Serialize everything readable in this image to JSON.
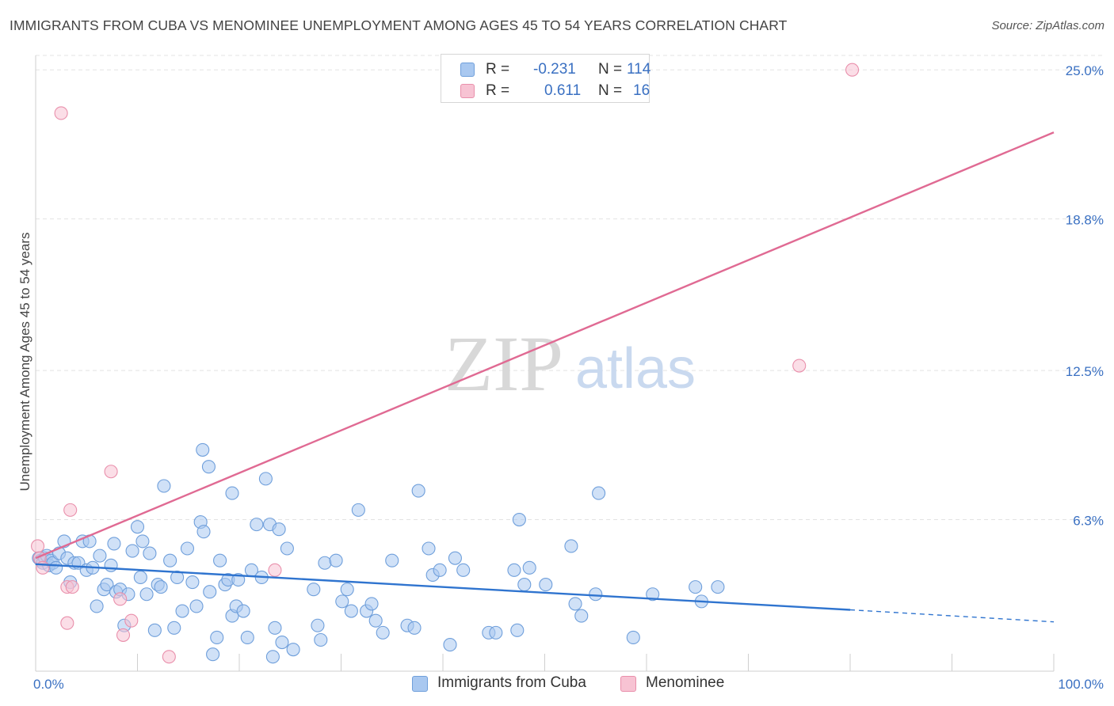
{
  "title": "IMMIGRANTS FROM CUBA VS MENOMINEE UNEMPLOYMENT AMONG AGES 45 TO 54 YEARS CORRELATION CHART",
  "source": "Source: ZipAtlas.com",
  "watermark": {
    "zip": "ZIP",
    "atlas": "atlas"
  },
  "legend": {
    "r_label": "R =",
    "n_label": "N =",
    "series": [
      {
        "name": "Immigrants from Cuba",
        "r": "-0.231",
        "n": "114"
      },
      {
        "name": "Menominee",
        "r": "0.611",
        "n": "16"
      }
    ]
  },
  "colors": {
    "cuba_fill": "#a9c8f0",
    "cuba_stroke": "#6f9fdb",
    "cuba_line": "#2f74cf",
    "menominee_fill": "#f7c3d3",
    "menominee_stroke": "#e98fab",
    "menominee_line": "#e06a93",
    "axis_label": "#3a70c2",
    "grid": "#e3e3e3"
  },
  "chart_data": {
    "type": "scatter",
    "title": "IMMIGRANTS FROM CUBA VS MENOMINEE UNEMPLOYMENT AMONG AGES 45 TO 54 YEARS CORRELATION CHART",
    "xlabel": "",
    "ylabel": "Unemployment Among Ages 45 to 54 years",
    "x_tick_labels": [
      "0.0%",
      "100.0%"
    ],
    "y_tick_labels": [
      "25.0%",
      "18.8%",
      "12.5%",
      "6.3%"
    ],
    "y_ticks": [
      25.0,
      18.8,
      12.5,
      6.3
    ],
    "xlim": [
      0,
      100
    ],
    "ylim": [
      0,
      25.6
    ],
    "series": [
      {
        "name": "Immigrants from Cuba",
        "points": [
          [
            0.3,
            4.7
          ],
          [
            0.5,
            4.6
          ],
          [
            0.7,
            4.5
          ],
          [
            0.9,
            4.7
          ],
          [
            1.1,
            4.8
          ],
          [
            1.3,
            4.4
          ],
          [
            1.5,
            4.6
          ],
          [
            1.7,
            4.5
          ],
          [
            2.0,
            4.3
          ],
          [
            2.3,
            4.9
          ],
          [
            2.8,
            5.4
          ],
          [
            3.1,
            4.7
          ],
          [
            3.4,
            3.7
          ],
          [
            3.8,
            4.5
          ],
          [
            4.2,
            4.5
          ],
          [
            4.6,
            5.4
          ],
          [
            5.0,
            4.2
          ],
          [
            5.3,
            5.4
          ],
          [
            5.6,
            4.3
          ],
          [
            6.0,
            2.7
          ],
          [
            6.3,
            4.8
          ],
          [
            6.7,
            3.4
          ],
          [
            7.0,
            3.6
          ],
          [
            7.4,
            4.4
          ],
          [
            7.7,
            5.3
          ],
          [
            7.9,
            3.3
          ],
          [
            8.3,
            3.4
          ],
          [
            8.7,
            1.9
          ],
          [
            9.1,
            3.2
          ],
          [
            9.5,
            5.0
          ],
          [
            10.0,
            6.0
          ],
          [
            10.3,
            3.9
          ],
          [
            10.5,
            5.4
          ],
          [
            10.9,
            3.2
          ],
          [
            11.2,
            4.9
          ],
          [
            11.7,
            1.7
          ],
          [
            12.0,
            3.6
          ],
          [
            12.3,
            3.5
          ],
          [
            12.6,
            7.7
          ],
          [
            13.2,
            4.6
          ],
          [
            13.6,
            1.8
          ],
          [
            13.9,
            3.9
          ],
          [
            14.4,
            2.5
          ],
          [
            14.9,
            5.1
          ],
          [
            15.4,
            3.7
          ],
          [
            15.8,
            2.7
          ],
          [
            16.2,
            6.2
          ],
          [
            16.5,
            5.8
          ],
          [
            17.1,
            3.3
          ],
          [
            17.4,
            0.7
          ],
          [
            17.8,
            1.4
          ],
          [
            18.1,
            4.6
          ],
          [
            18.6,
            3.6
          ],
          [
            18.9,
            3.8
          ],
          [
            19.3,
            2.3
          ],
          [
            19.7,
            2.7
          ],
          [
            19.9,
            3.8
          ],
          [
            20.4,
            2.5
          ],
          [
            20.8,
            1.4
          ],
          [
            21.2,
            4.2
          ],
          [
            21.7,
            6.1
          ],
          [
            22.2,
            3.9
          ],
          [
            22.6,
            8.0
          ],
          [
            23.0,
            6.1
          ],
          [
            23.3,
            0.6
          ],
          [
            23.5,
            1.8
          ],
          [
            23.9,
            5.9
          ],
          [
            24.2,
            1.2
          ],
          [
            24.7,
            5.1
          ],
          [
            25.3,
            0.9
          ],
          [
            16.4,
            9.2
          ],
          [
            17.0,
            8.5
          ],
          [
            19.3,
            7.4
          ],
          [
            27.3,
            3.4
          ],
          [
            27.7,
            1.9
          ],
          [
            28.0,
            1.3
          ],
          [
            28.4,
            4.5
          ],
          [
            29.5,
            4.6
          ],
          [
            30.1,
            2.9
          ],
          [
            30.6,
            3.4
          ],
          [
            31.0,
            2.5
          ],
          [
            32.5,
            2.5
          ],
          [
            33.0,
            2.8
          ],
          [
            33.4,
            2.1
          ],
          [
            34.1,
            1.6
          ],
          [
            31.7,
            6.7
          ],
          [
            35.0,
            4.6
          ],
          [
            36.5,
            1.9
          ],
          [
            37.2,
            1.8
          ],
          [
            39.0,
            4.0
          ],
          [
            38.6,
            5.1
          ],
          [
            39.7,
            4.2
          ],
          [
            41.2,
            4.7
          ],
          [
            42.0,
            4.2
          ],
          [
            40.7,
            1.1
          ],
          [
            44.5,
            1.6
          ],
          [
            45.2,
            1.6
          ],
          [
            47.0,
            4.2
          ],
          [
            48.0,
            3.6
          ],
          [
            48.5,
            4.3
          ],
          [
            47.5,
            6.3
          ],
          [
            47.3,
            1.7
          ],
          [
            50.1,
            3.6
          ],
          [
            52.6,
            5.2
          ],
          [
            53.0,
            2.8
          ],
          [
            53.6,
            2.3
          ],
          [
            55.0,
            3.2
          ],
          [
            55.3,
            7.4
          ],
          [
            58.7,
            1.4
          ],
          [
            60.6,
            3.2
          ],
          [
            64.8,
            3.5
          ],
          [
            65.4,
            2.9
          ],
          [
            67.0,
            3.5
          ],
          [
            37.6,
            7.5
          ]
        ]
      },
      {
        "name": "Menominee",
        "points": [
          [
            0.2,
            5.2
          ],
          [
            0.4,
            4.7
          ],
          [
            0.7,
            4.3
          ],
          [
            2.5,
            23.2
          ],
          [
            3.1,
            3.5
          ],
          [
            3.4,
            6.7
          ],
          [
            3.6,
            3.5
          ],
          [
            3.1,
            2.0
          ],
          [
            7.4,
            8.3
          ],
          [
            8.3,
            3.0
          ],
          [
            8.6,
            1.5
          ],
          [
            9.4,
            2.1
          ],
          [
            13.1,
            0.6
          ],
          [
            23.5,
            4.2
          ],
          [
            80.2,
            25.0
          ],
          [
            75.0,
            12.7
          ]
        ]
      }
    ],
    "trendlines": [
      {
        "series": "Immigrants from Cuba",
        "from": [
          0,
          4.45
        ],
        "to": [
          80,
          2.55
        ],
        "dashed_to": [
          100,
          2.05
        ]
      },
      {
        "series": "Menominee",
        "from": [
          0,
          4.7
        ],
        "to": [
          100,
          22.4
        ]
      }
    ]
  }
}
